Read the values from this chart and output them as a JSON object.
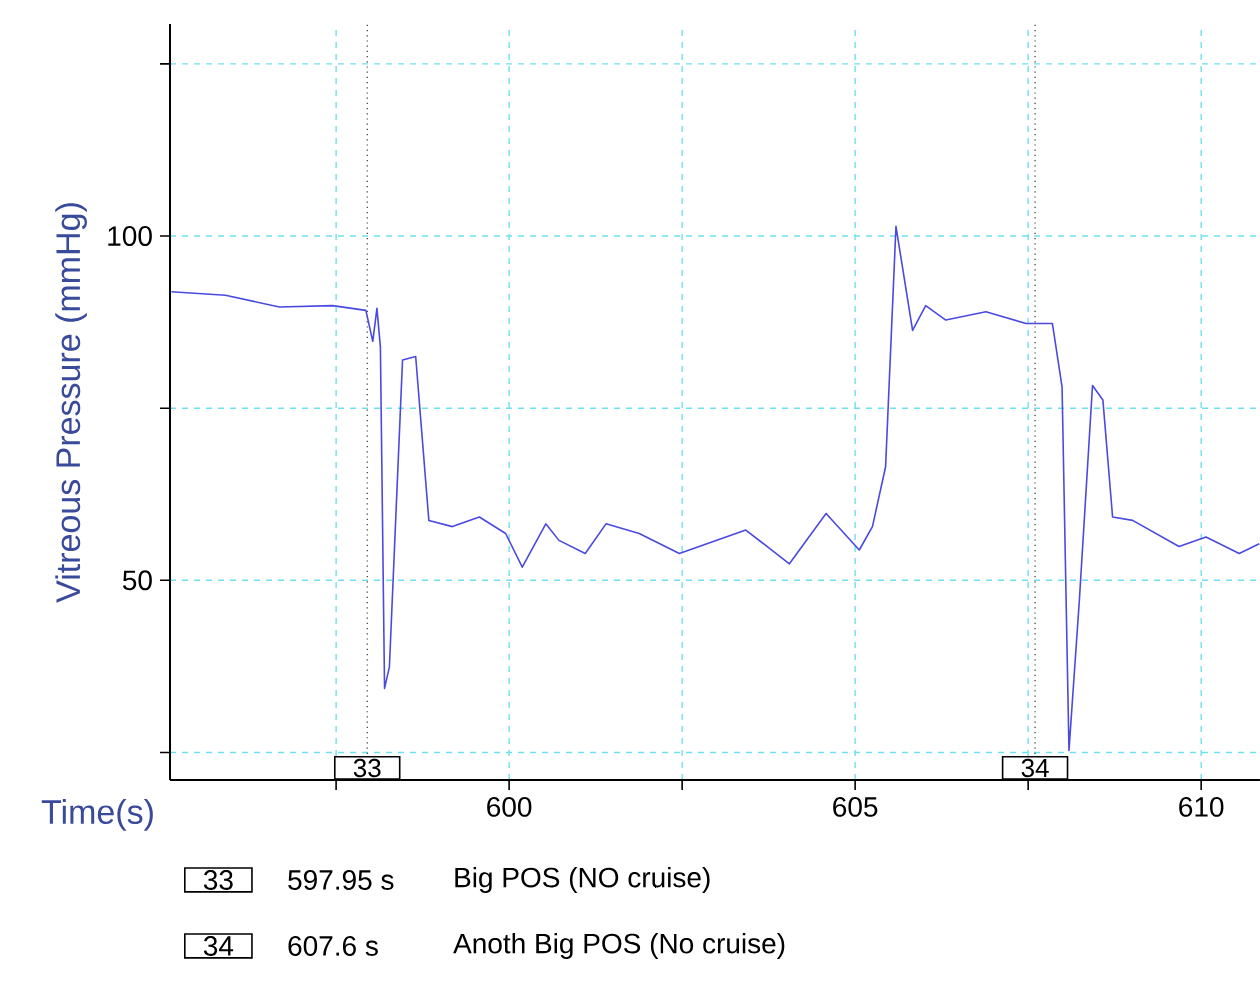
{
  "chart_data": {
    "type": "line",
    "xlabel": "Time(s)",
    "ylabel": "Vitreous Pressure (mmHg)",
    "xlim": [
      595.1,
      610.85
    ],
    "ylim": [
      21,
      130.8
    ],
    "xticks": [
      {
        "value": 597.5,
        "label": null
      },
      600,
      {
        "value": 602.5,
        "label": null
      },
      605,
      {
        "value": 607.5,
        "label": null
      },
      610
    ],
    "yticks": [
      {
        "value": 25,
        "label": null
      },
      50,
      {
        "value": 75,
        "label": null
      },
      100,
      {
        "value": 125,
        "label": null
      }
    ],
    "grid": true,
    "line_style": "solid",
    "series": [
      {
        "color": "#4a4ae0",
        "x": [
          595.12,
          595.9,
          596.68,
          597.45,
          597.93,
          598.03,
          598.09,
          598.14,
          598.2,
          598.27,
          598.46,
          598.65,
          598.84,
          599.18,
          599.57,
          599.95,
          600.19,
          600.53,
          600.72,
          601.1,
          601.4,
          601.88,
          602.46,
          603.42,
          604.05,
          604.58,
          605.06,
          605.25,
          605.44,
          605.59,
          605.83,
          606.02,
          606.31,
          606.89,
          607.47,
          607.85,
          607.99,
          608.09,
          608.24,
          608.43,
          608.58,
          608.72,
          609.01,
          609.68,
          610.07,
          610.55,
          610.84
        ],
        "values": [
          91.9,
          91.4,
          89.7,
          89.9,
          89.2,
          84.7,
          89.5,
          83.9,
          34.3,
          37.4,
          82.0,
          82.5,
          58.7,
          57.8,
          59.2,
          56.8,
          51.9,
          58.2,
          55.8,
          53.9,
          58.2,
          56.8,
          53.9,
          57.3,
          52.4,
          59.7,
          54.4,
          57.8,
          66.5,
          101.4,
          86.3,
          89.9,
          87.8,
          89.0,
          87.3,
          87.3,
          78.1,
          25.3,
          47.1,
          78.3,
          76.2,
          59.2,
          58.7,
          54.9,
          56.3,
          53.9,
          55.3
        ]
      }
    ],
    "ref_lines": [
      {
        "axis": "x",
        "value": 597.95,
        "color": "#333333",
        "line_style": "dotted"
      },
      {
        "axis": "x",
        "value": 607.6,
        "color": "#333333",
        "line_style": "dotted"
      }
    ],
    "annotations": [
      {
        "text": "33",
        "x": 597.95,
        "y": 21
      },
      {
        "text": "34",
        "x": 607.6,
        "y": 21
      },
      "33",
      "597.95 s",
      "Big POS (NO cruise)",
      "34",
      "607.6 s",
      "Anoth Big POS (No cruise)"
    ]
  }
}
